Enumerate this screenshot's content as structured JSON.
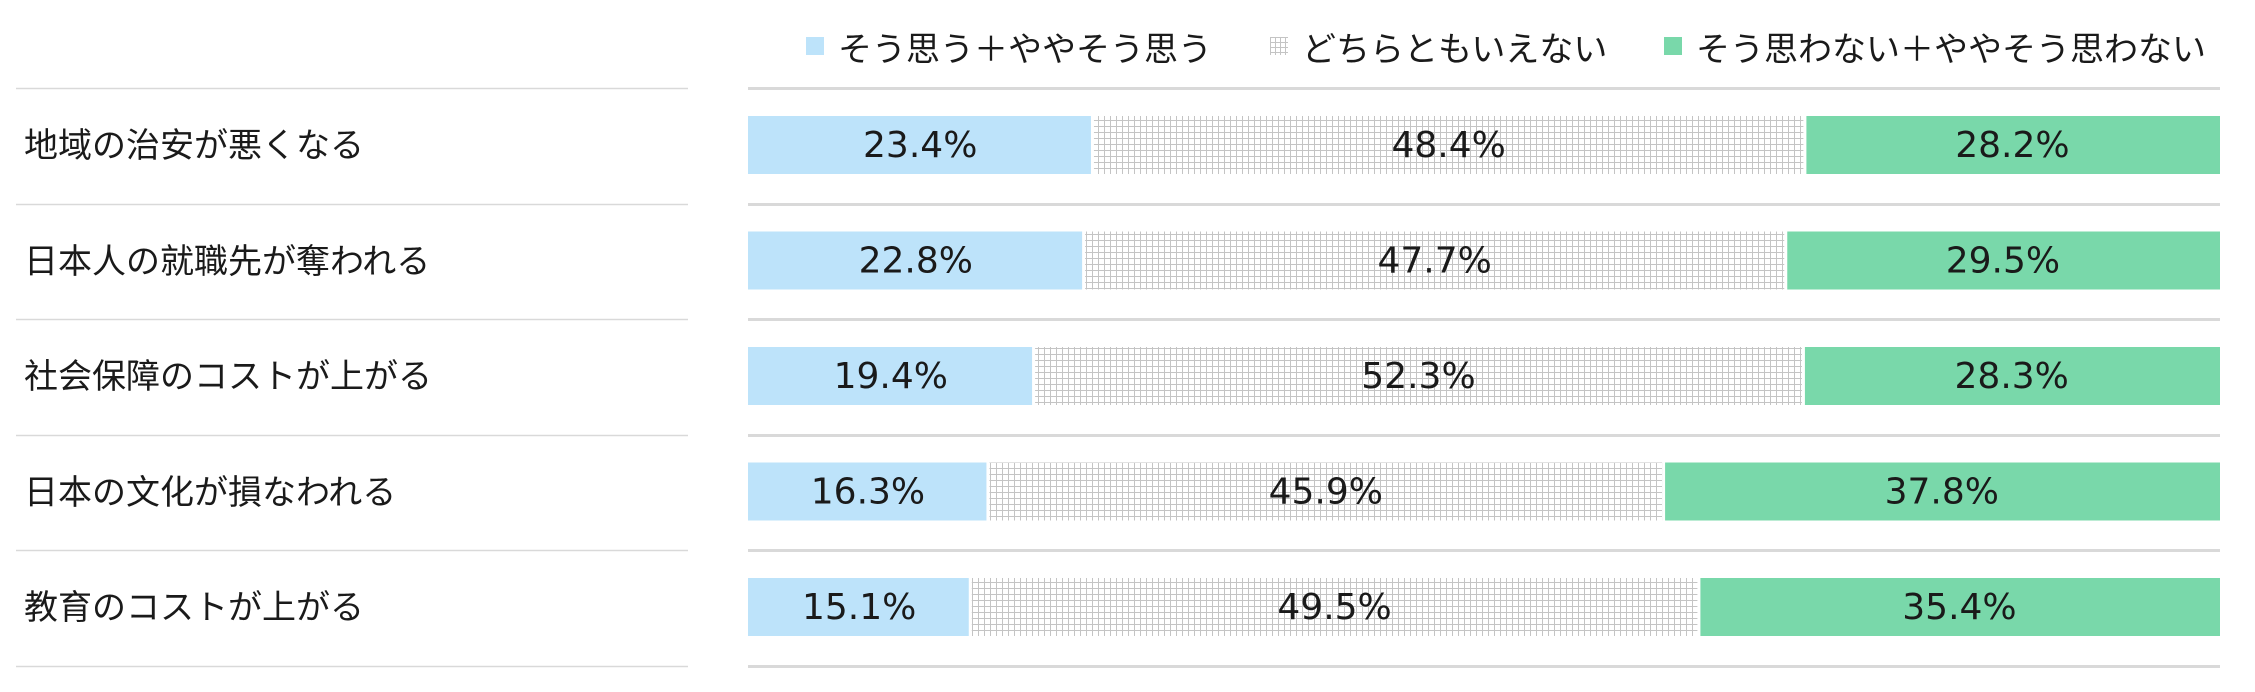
{
  "chart_data": {
    "type": "bar",
    "orientation": "horizontal",
    "stacked": "percent",
    "categories": [
      "地域の治安が悪くなる",
      "日本人の就職先が奪われる",
      "社会保障のコストが上がる",
      "日本の文化が損なわれる",
      "教育のコストが上がる"
    ],
    "series": [
      {
        "name": "そう思う＋ややそう思う",
        "values": [
          23.4,
          22.8,
          19.4,
          16.3,
          15.1
        ],
        "color": "#bde3fa",
        "pattern": "solid"
      },
      {
        "name": "どちらともいえない",
        "values": [
          48.4,
          47.7,
          52.3,
          45.9,
          49.5
        ],
        "color": "#d4d4d4",
        "pattern": "grid"
      },
      {
        "name": "そう思わない＋ややそう思わない",
        "values": [
          28.2,
          29.5,
          28.3,
          37.8,
          35.4
        ],
        "color": "#79d8aa",
        "pattern": "solid"
      }
    ],
    "value_suffix": "%",
    "xlim": [
      0,
      100
    ],
    "legend": "top",
    "grid": false
  }
}
